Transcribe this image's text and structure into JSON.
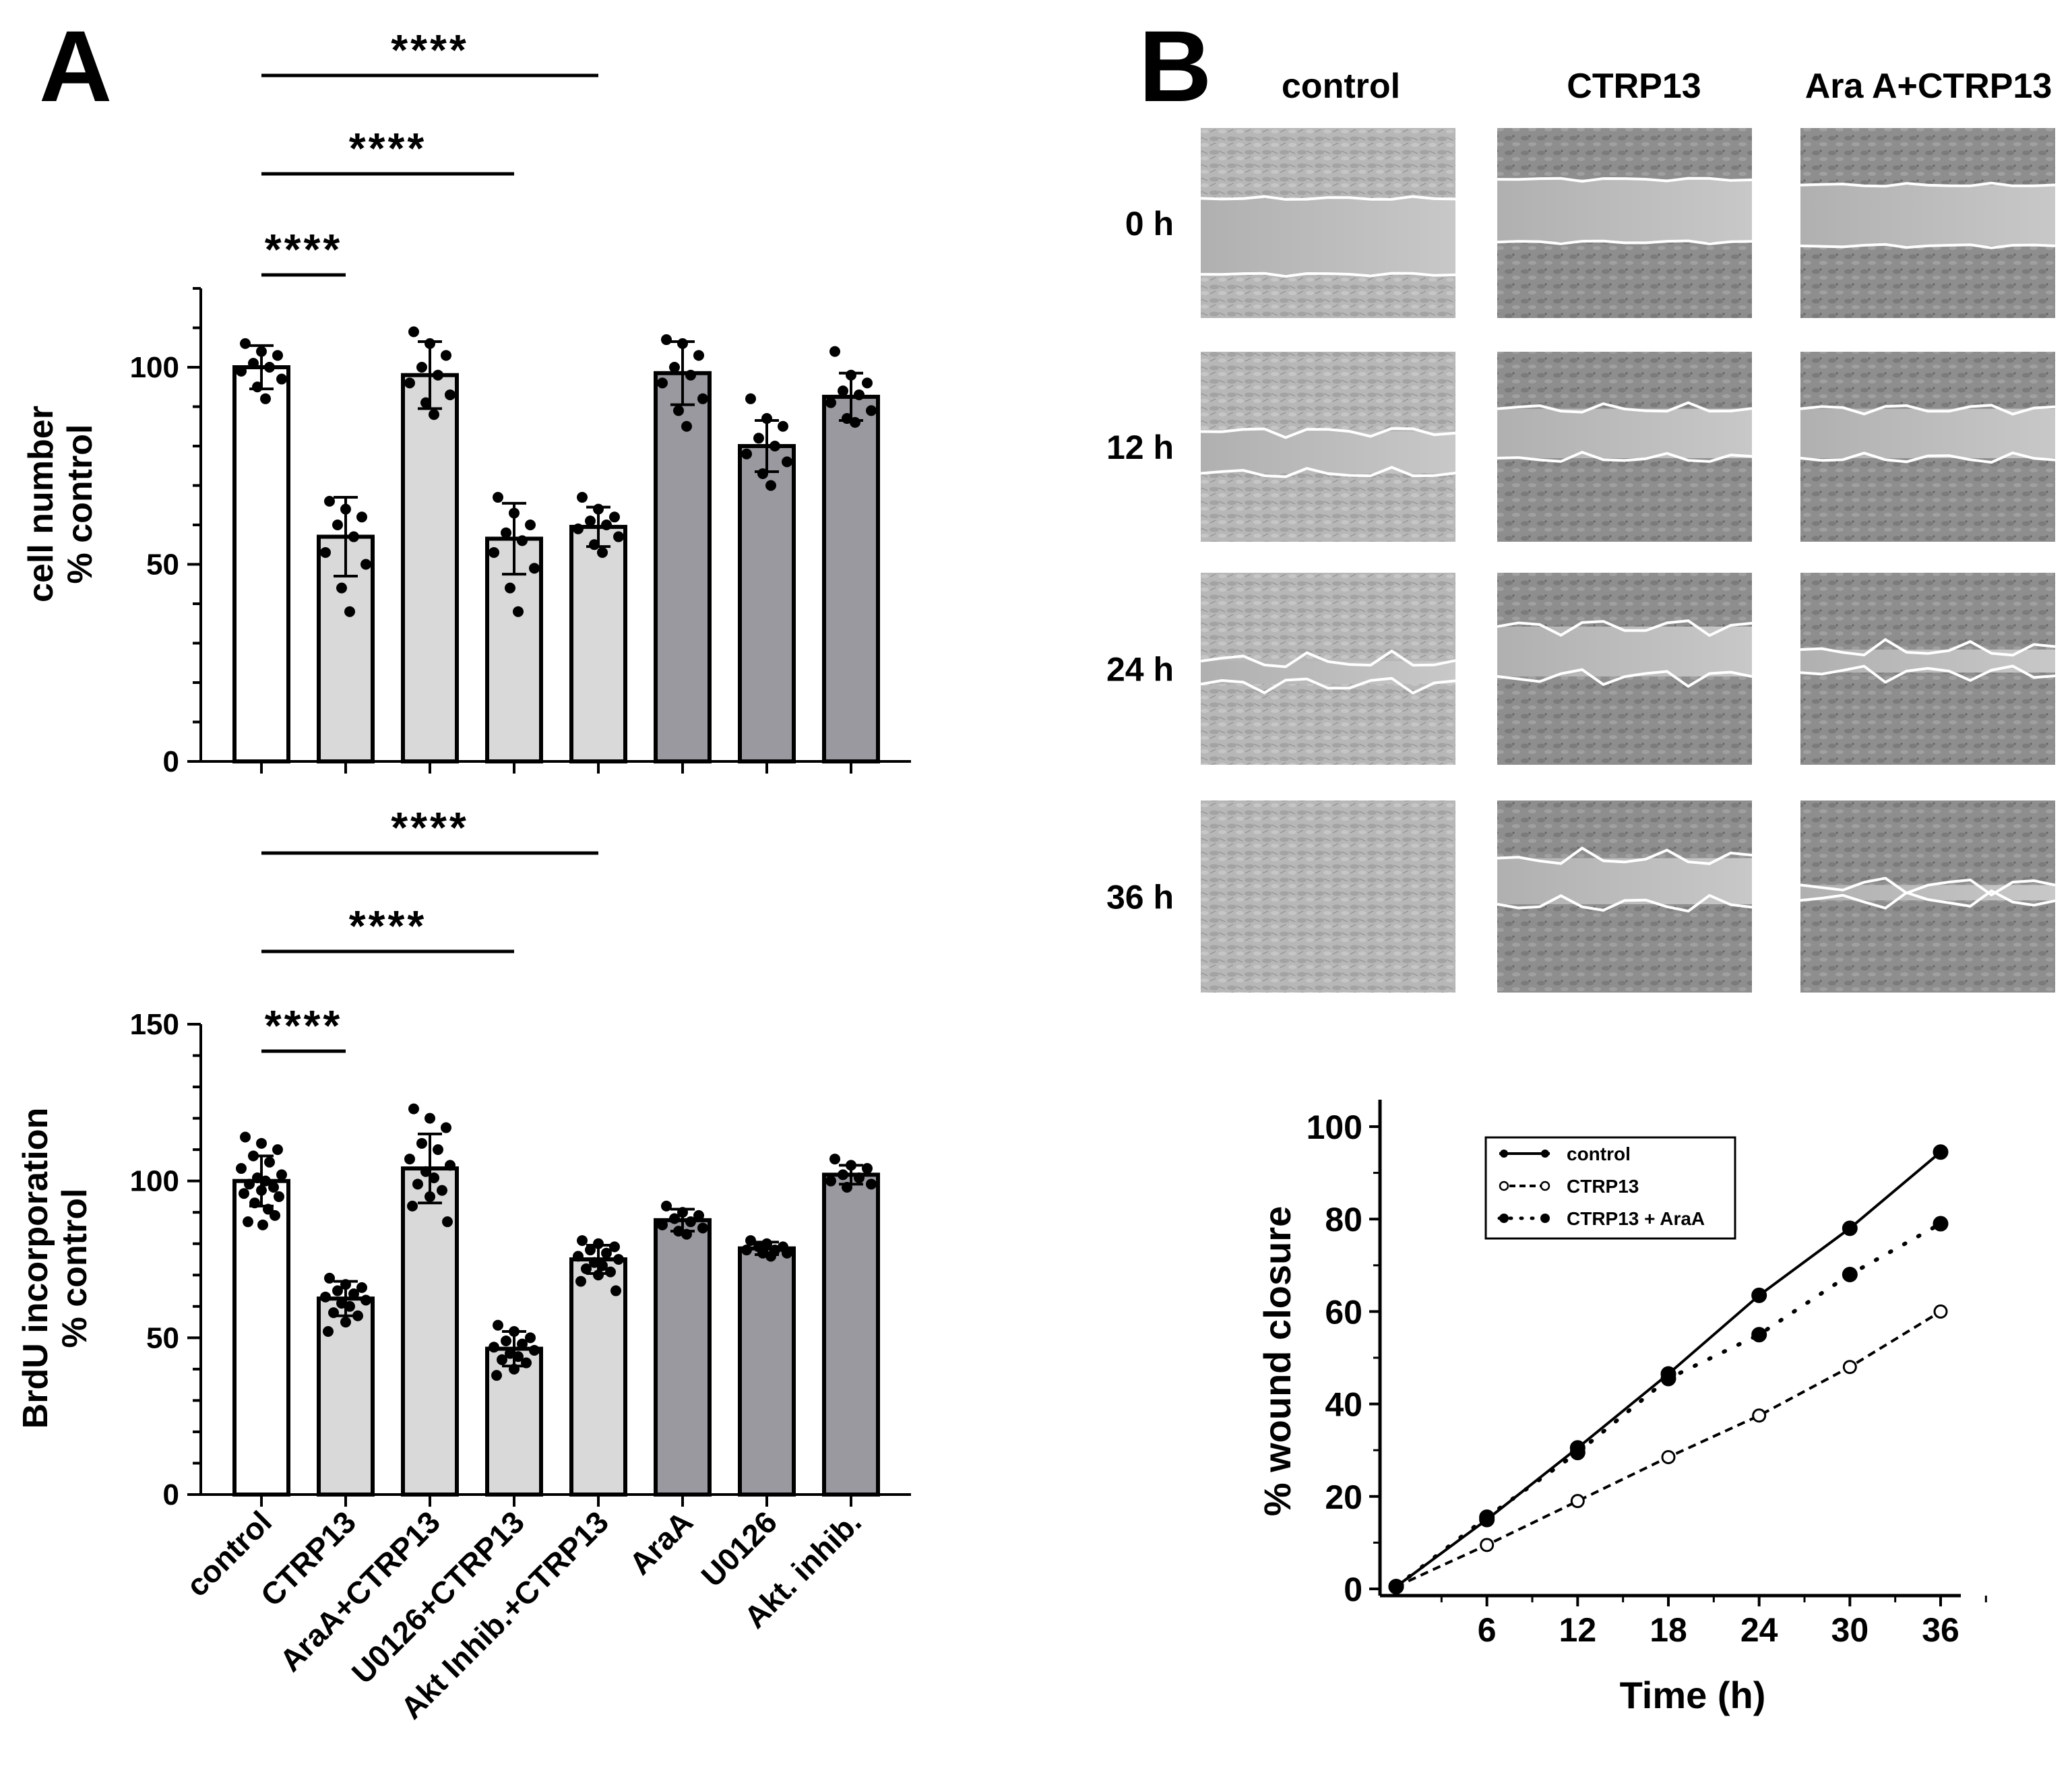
{
  "panels": {
    "a_label": "A",
    "b_label": "B"
  },
  "significance": {
    "label": "****"
  },
  "bar_colors": {
    "control": "#ffffff",
    "combo": "#d9d9d9",
    "inhibitor": "#9a99a0"
  },
  "chart_data": [
    {
      "type": "bar",
      "id": "cell-number",
      "title": "",
      "ylabel_line1": "cell number",
      "ylabel_line2": "% control",
      "ylim": [
        0,
        120
      ],
      "yticks": [
        "0",
        "50",
        "100"
      ],
      "categories": [
        "control",
        "CTRP13",
        "AraA+CTRP13",
        "U0126+CTRP13",
        "Akt Inhib.+CTRP13",
        "AraA",
        "U0126",
        "Akt. inhib."
      ],
      "values": [
        100,
        57,
        98,
        56.5,
        59.5,
        98.5,
        80,
        92.5
      ],
      "errors": [
        5.5,
        10,
        8.5,
        9,
        5,
        8,
        6.5,
        6
      ],
      "groups": [
        "control",
        "combo",
        "combo",
        "combo",
        "combo",
        "inhibitor",
        "inhibitor",
        "inhibitor"
      ],
      "points": [
        [
          106,
          104,
          103,
          101,
          100,
          99,
          97,
          95,
          92
        ],
        [
          66,
          64,
          62,
          60,
          57,
          53,
          50,
          44,
          38
        ],
        [
          109,
          106,
          103,
          100,
          98,
          96,
          93,
          91,
          88
        ],
        [
          67,
          63,
          60,
          58,
          56,
          53,
          49,
          44,
          38
        ],
        [
          67,
          64,
          62,
          61,
          60,
          59,
          57,
          55,
          53
        ],
        [
          107,
          106,
          103,
          100,
          98,
          96,
          92,
          89,
          85
        ],
        [
          92,
          87,
          85,
          82,
          80,
          78,
          76,
          73,
          70
        ],
        [
          104,
          98,
          96,
          94,
          93,
          91,
          89,
          87,
          86
        ]
      ]
    },
    {
      "type": "bar",
      "id": "brdu-incorporation",
      "title": "",
      "ylabel_line1": "BrdU incorporation",
      "ylabel_line2": "% control",
      "ylim": [
        0,
        150
      ],
      "yticks": [
        "0",
        "50",
        "100",
        "150"
      ],
      "categories": [
        "control",
        "CTRP13",
        "AraA+CTRP13",
        "U0126+CTRP13",
        "Akt Inhib.+CTRP13",
        "AraA",
        "U0126",
        "Akt. inhib."
      ],
      "values": [
        100,
        62.5,
        104,
        46.5,
        75,
        87.5,
        78.5,
        102
      ],
      "errors": [
        8,
        5.5,
        11,
        5.5,
        4.5,
        3.5,
        2,
        3
      ],
      "groups": [
        "control",
        "combo",
        "combo",
        "combo",
        "combo",
        "inhibitor",
        "inhibitor",
        "inhibitor"
      ],
      "points": [
        [
          114,
          112,
          110,
          108,
          106,
          104,
          102,
          101,
          100,
          99,
          98,
          97,
          96,
          95,
          93,
          91,
          89,
          87,
          86
        ],
        [
          69,
          67,
          66,
          65,
          64,
          63,
          62,
          61,
          60,
          58,
          57,
          55,
          52
        ],
        [
          123,
          120,
          117,
          112,
          110,
          107,
          105,
          103,
          101,
          99,
          97,
          95,
          92,
          87
        ],
        [
          54,
          52,
          50,
          49,
          48,
          47,
          46,
          45,
          44,
          43,
          42,
          40,
          38
        ],
        [
          81,
          80,
          79,
          78,
          77,
          76,
          75,
          74,
          73,
          72,
          71,
          70,
          68,
          65
        ],
        [
          92,
          90,
          89,
          88,
          87,
          86,
          85,
          84,
          83
        ],
        [
          81,
          80,
          79,
          79,
          78,
          78,
          77,
          77,
          76
        ],
        [
          107,
          105,
          104,
          102,
          101,
          100,
          99,
          98
        ]
      ]
    },
    {
      "type": "line",
      "id": "wound-closure",
      "title": "",
      "xlabel": "Time (h)",
      "ylabel": "% wound closure",
      "xlim": [
        0,
        40
      ],
      "ylim": [
        0,
        100
      ],
      "xticks": [
        "6",
        "12",
        "18",
        "24",
        "30",
        "36"
      ],
      "yticks": [
        "0",
        "20",
        "40",
        "60",
        "80",
        "100"
      ],
      "series": [
        {
          "name": "control",
          "style": "solid",
          "marker": "filled",
          "points": [
            [
              0,
              0.5
            ],
            [
              6,
              15
            ],
            [
              12,
              30.5
            ],
            [
              18,
              46.5
            ],
            [
              24,
              63.5
            ],
            [
              30,
              78
            ],
            [
              36,
              94.5
            ]
          ]
        },
        {
          "name": "CTRP13",
          "style": "dashed",
          "marker": "open",
          "points": [
            [
              0,
              0.5
            ],
            [
              6,
              9.5
            ],
            [
              12,
              19
            ],
            [
              18,
              28.5
            ],
            [
              24,
              37.5
            ],
            [
              30,
              48
            ],
            [
              36,
              60
            ]
          ]
        },
        {
          "name": "CTRP13 + AraA",
          "style": "dotted",
          "marker": "filled",
          "points": [
            [
              0,
              0.5
            ],
            [
              6,
              15.5
            ],
            [
              12,
              29.5
            ],
            [
              18,
              45.5
            ],
            [
              24,
              55
            ],
            [
              30,
              68
            ],
            [
              36,
              79
            ]
          ]
        }
      ]
    }
  ],
  "wound_assay": {
    "columns": [
      "control",
      "CTRP13",
      "Ara A+CTRP13"
    ],
    "rows": [
      "0 h",
      "12 h",
      "24 h",
      "36 h"
    ]
  }
}
